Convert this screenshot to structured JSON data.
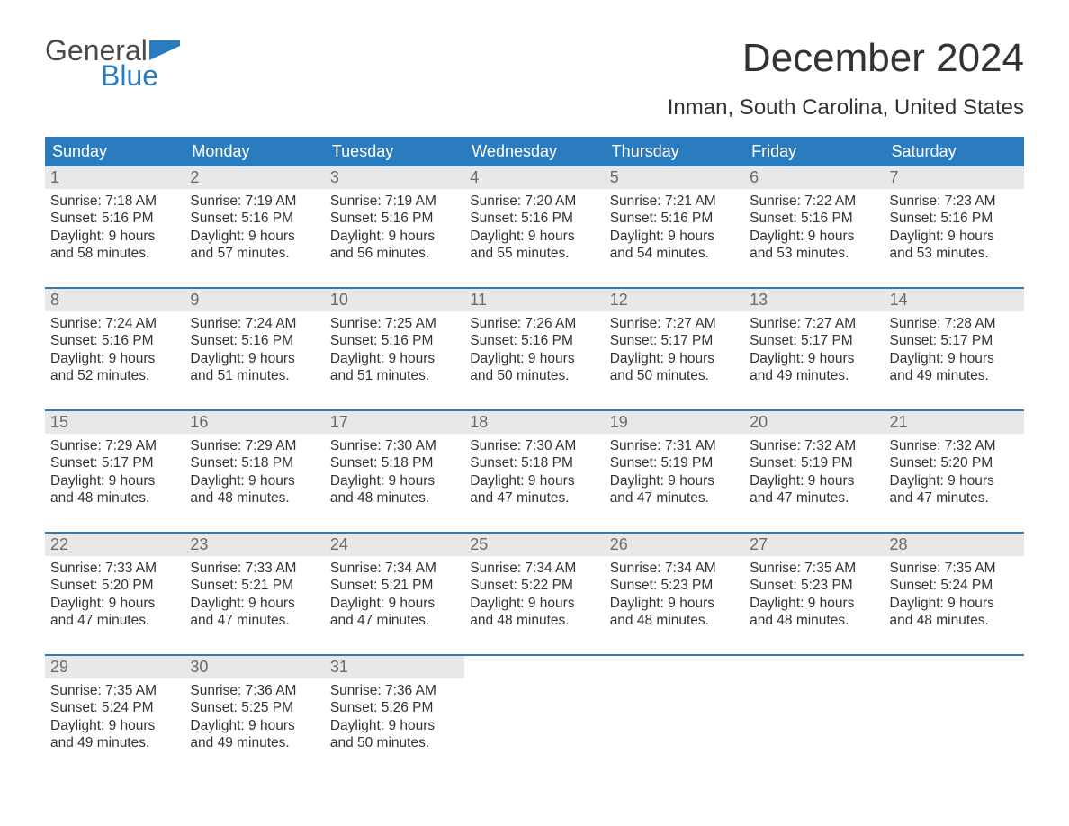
{
  "logo": {
    "word1": "General",
    "word2": "Blue"
  },
  "title": "December 2024",
  "subtitle": "Inman, South Carolina, United States",
  "colors": {
    "header_bg": "#2b7bbf",
    "header_text": "#ffffff",
    "daynum_bg": "#e8e8e8",
    "daynum_text": "#6a6a6a",
    "body_text": "#333333",
    "rule": "#2b7bbf",
    "logo_gray": "#4a4a4a",
    "logo_blue": "#2b7bbf",
    "page_bg": "#ffffff"
  },
  "fonts": {
    "family": "Arial",
    "title_size_pt": 33,
    "subtitle_size_pt": 18,
    "header_size_pt": 14,
    "daynum_size_pt": 14,
    "body_size_pt": 12
  },
  "day_headers": [
    "Sunday",
    "Monday",
    "Tuesday",
    "Wednesday",
    "Thursday",
    "Friday",
    "Saturday"
  ],
  "weeks": [
    [
      {
        "n": "1",
        "sunrise": "7:18 AM",
        "sunset": "5:16 PM",
        "daylight": "9 hours and 58 minutes."
      },
      {
        "n": "2",
        "sunrise": "7:19 AM",
        "sunset": "5:16 PM",
        "daylight": "9 hours and 57 minutes."
      },
      {
        "n": "3",
        "sunrise": "7:19 AM",
        "sunset": "5:16 PM",
        "daylight": "9 hours and 56 minutes."
      },
      {
        "n": "4",
        "sunrise": "7:20 AM",
        "sunset": "5:16 PM",
        "daylight": "9 hours and 55 minutes."
      },
      {
        "n": "5",
        "sunrise": "7:21 AM",
        "sunset": "5:16 PM",
        "daylight": "9 hours and 54 minutes."
      },
      {
        "n": "6",
        "sunrise": "7:22 AM",
        "sunset": "5:16 PM",
        "daylight": "9 hours and 53 minutes."
      },
      {
        "n": "7",
        "sunrise": "7:23 AM",
        "sunset": "5:16 PM",
        "daylight": "9 hours and 53 minutes."
      }
    ],
    [
      {
        "n": "8",
        "sunrise": "7:24 AM",
        "sunset": "5:16 PM",
        "daylight": "9 hours and 52 minutes."
      },
      {
        "n": "9",
        "sunrise": "7:24 AM",
        "sunset": "5:16 PM",
        "daylight": "9 hours and 51 minutes."
      },
      {
        "n": "10",
        "sunrise": "7:25 AM",
        "sunset": "5:16 PM",
        "daylight": "9 hours and 51 minutes."
      },
      {
        "n": "11",
        "sunrise": "7:26 AM",
        "sunset": "5:16 PM",
        "daylight": "9 hours and 50 minutes."
      },
      {
        "n": "12",
        "sunrise": "7:27 AM",
        "sunset": "5:17 PM",
        "daylight": "9 hours and 50 minutes."
      },
      {
        "n": "13",
        "sunrise": "7:27 AM",
        "sunset": "5:17 PM",
        "daylight": "9 hours and 49 minutes."
      },
      {
        "n": "14",
        "sunrise": "7:28 AM",
        "sunset": "5:17 PM",
        "daylight": "9 hours and 49 minutes."
      }
    ],
    [
      {
        "n": "15",
        "sunrise": "7:29 AM",
        "sunset": "5:17 PM",
        "daylight": "9 hours and 48 minutes."
      },
      {
        "n": "16",
        "sunrise": "7:29 AM",
        "sunset": "5:18 PM",
        "daylight": "9 hours and 48 minutes."
      },
      {
        "n": "17",
        "sunrise": "7:30 AM",
        "sunset": "5:18 PM",
        "daylight": "9 hours and 48 minutes."
      },
      {
        "n": "18",
        "sunrise": "7:30 AM",
        "sunset": "5:18 PM",
        "daylight": "9 hours and 47 minutes."
      },
      {
        "n": "19",
        "sunrise": "7:31 AM",
        "sunset": "5:19 PM",
        "daylight": "9 hours and 47 minutes."
      },
      {
        "n": "20",
        "sunrise": "7:32 AM",
        "sunset": "5:19 PM",
        "daylight": "9 hours and 47 minutes."
      },
      {
        "n": "21",
        "sunrise": "7:32 AM",
        "sunset": "5:20 PM",
        "daylight": "9 hours and 47 minutes."
      }
    ],
    [
      {
        "n": "22",
        "sunrise": "7:33 AM",
        "sunset": "5:20 PM",
        "daylight": "9 hours and 47 minutes."
      },
      {
        "n": "23",
        "sunrise": "7:33 AM",
        "sunset": "5:21 PM",
        "daylight": "9 hours and 47 minutes."
      },
      {
        "n": "24",
        "sunrise": "7:34 AM",
        "sunset": "5:21 PM",
        "daylight": "9 hours and 47 minutes."
      },
      {
        "n": "25",
        "sunrise": "7:34 AM",
        "sunset": "5:22 PM",
        "daylight": "9 hours and 48 minutes."
      },
      {
        "n": "26",
        "sunrise": "7:34 AM",
        "sunset": "5:23 PM",
        "daylight": "9 hours and 48 minutes."
      },
      {
        "n": "27",
        "sunrise": "7:35 AM",
        "sunset": "5:23 PM",
        "daylight": "9 hours and 48 minutes."
      },
      {
        "n": "28",
        "sunrise": "7:35 AM",
        "sunset": "5:24 PM",
        "daylight": "9 hours and 48 minutes."
      }
    ],
    [
      {
        "n": "29",
        "sunrise": "7:35 AM",
        "sunset": "5:24 PM",
        "daylight": "9 hours and 49 minutes."
      },
      {
        "n": "30",
        "sunrise": "7:36 AM",
        "sunset": "5:25 PM",
        "daylight": "9 hours and 49 minutes."
      },
      {
        "n": "31",
        "sunrise": "7:36 AM",
        "sunset": "5:26 PM",
        "daylight": "9 hours and 50 minutes."
      },
      null,
      null,
      null,
      null
    ]
  ],
  "labels": {
    "sunrise": "Sunrise:",
    "sunset": "Sunset:",
    "daylight": "Daylight:"
  }
}
